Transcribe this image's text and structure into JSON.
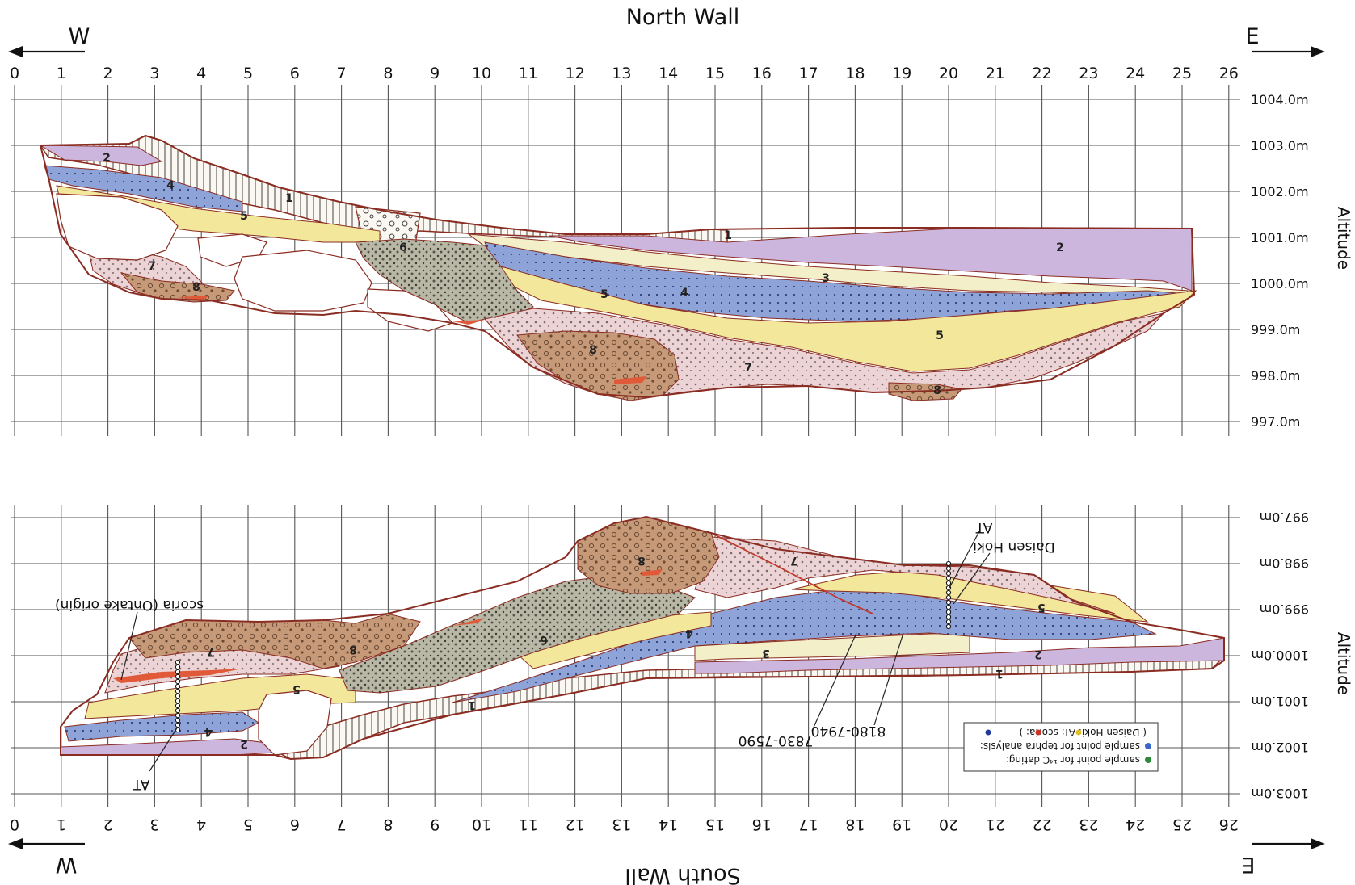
{
  "north": {
    "title": "North Wall",
    "west_label": "W",
    "east_label": "E",
    "side_label": "Altitude",
    "x_ticks": [
      "0",
      "1",
      "2",
      "3",
      "4",
      "5",
      "6",
      "7",
      "8",
      "9",
      "10",
      "11",
      "12",
      "13",
      "14",
      "15",
      "16",
      "17",
      "18",
      "19",
      "20",
      "21",
      "22",
      "23",
      "24",
      "25",
      "26"
    ],
    "altitudes": [
      "1004.0m",
      "1003.0m",
      "1002.0m",
      "1001.0m",
      "1000.0m",
      "999.0m",
      "998.0m",
      "997.0m"
    ],
    "layer_labels": [
      "1",
      "1",
      "2",
      "2",
      "3",
      "4",
      "4",
      "5",
      "5",
      "5",
      "6",
      "7",
      "7",
      "8",
      "8",
      "8"
    ]
  },
  "south": {
    "title": "South Wall",
    "west_label": "W",
    "east_label": "E",
    "side_label": "Altitude",
    "x_ticks": [
      "0",
      "1",
      "2",
      "3",
      "4",
      "5",
      "6",
      "7",
      "8",
      "9",
      "10",
      "11",
      "12",
      "13",
      "14",
      "15",
      "16",
      "17",
      "18",
      "19",
      "20",
      "21",
      "22",
      "23",
      "24",
      "25",
      "26"
    ],
    "altitudes": [
      "997.0m",
      "998.0m",
      "999.0m",
      "1000.0m",
      "1001.0m",
      "1002.0m",
      "1003.0m"
    ],
    "layer_labels": [
      "1",
      "1",
      "2",
      "2",
      "3",
      "4",
      "4",
      "5",
      "5",
      "6",
      "7",
      "7",
      "8",
      "8"
    ],
    "annotations": {
      "scoria": "scoria (Ontake origin)",
      "at_west": "AT",
      "at_east": "AT",
      "daisen": "Daisen Hoki",
      "date1": "7830-7590",
      "date2": "8180-7940"
    },
    "legend": {
      "line1": "sample point for ¹⁴C dating:",
      "line2": "sample point for tephra analysis:",
      "line3": "( Daisen Hoki:      AT:      scoria:      )"
    }
  },
  "colors": {
    "layer1": "#f6f1ea",
    "layer2": "#cdb6de",
    "layer3": "#f3efc8",
    "layer4": "#8ea3d8",
    "layer5": "#f2e79a",
    "layer6": "#b9b7a6",
    "layer7": "#ecd3d5",
    "layer8": "#c69a78",
    "outline": "#8a2c22",
    "red_band": "#e05a3a",
    "legend_c14": "#2a8a3a",
    "legend_tephra": "#3a66c8",
    "legend_daisen": "#e0c020",
    "legend_at": "#d03020",
    "legend_scoria": "#203a9a"
  }
}
